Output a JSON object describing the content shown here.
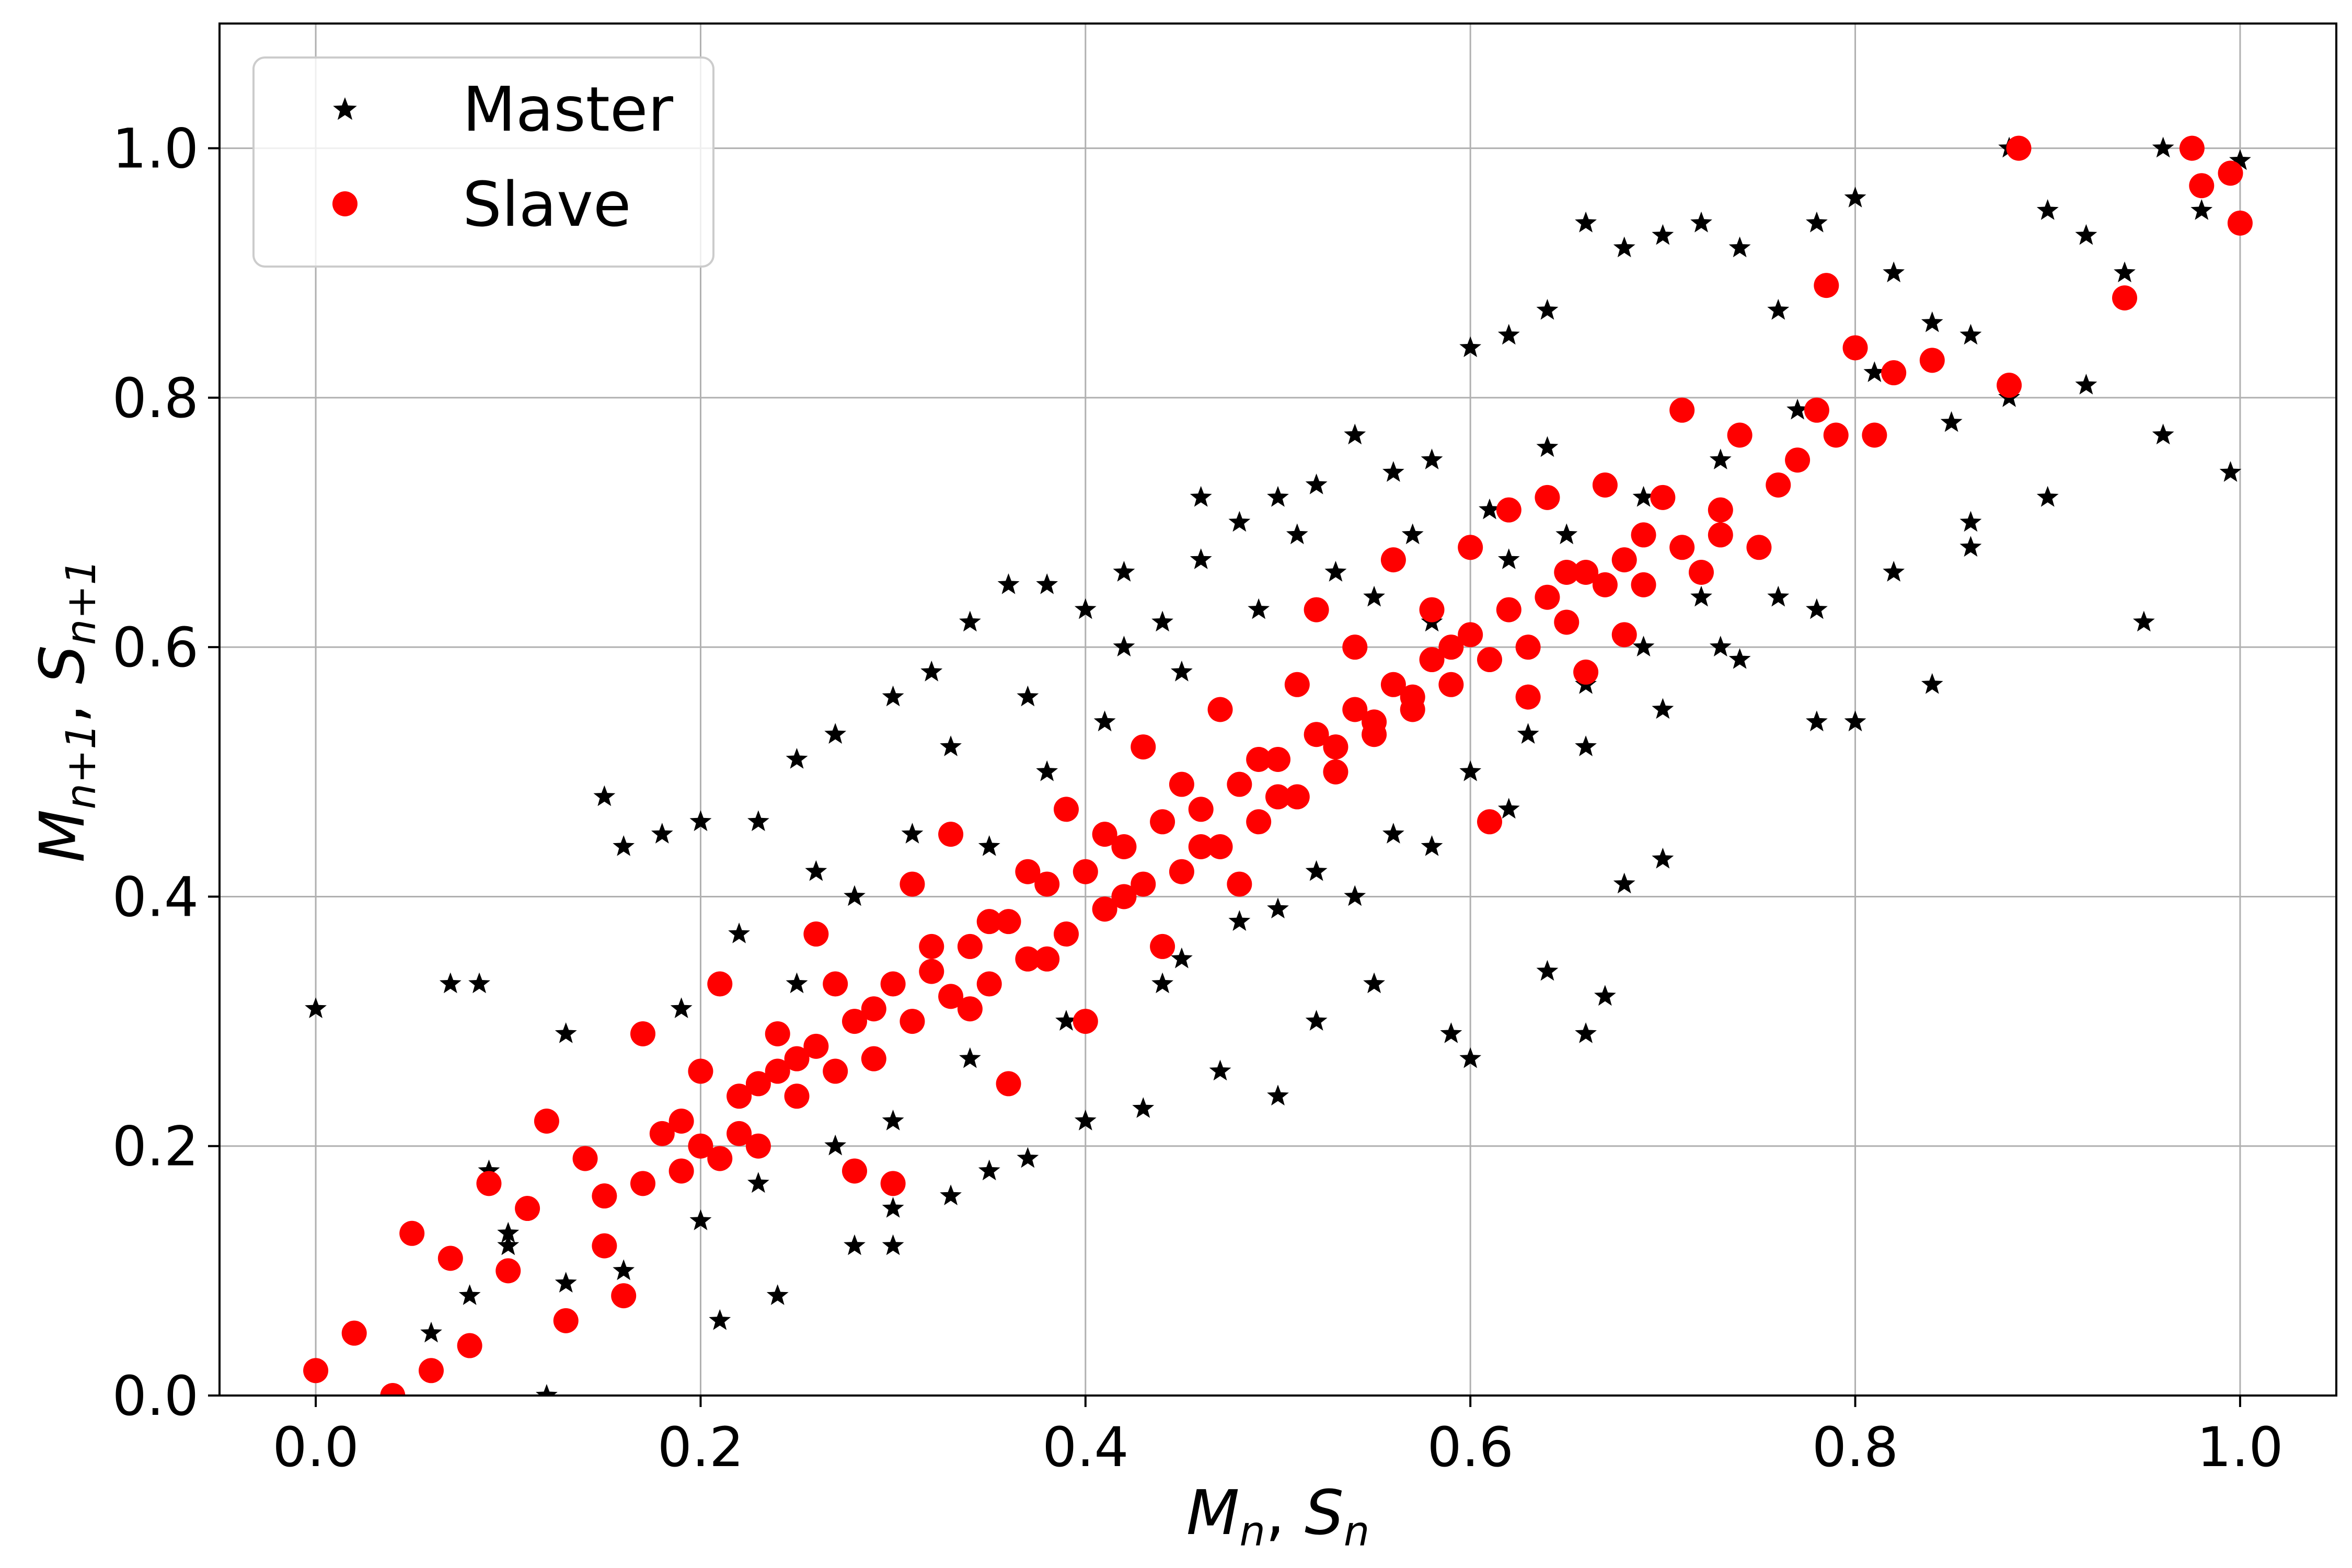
{
  "chart_data": {
    "type": "scatter",
    "title": "",
    "xlabel": {
      "main": "M",
      "sub": "n",
      "sep": ", ",
      "main2": "S",
      "sub2": "n"
    },
    "ylabel": {
      "main": "M",
      "sub": "n+1",
      "sep": ", ",
      "main2": "S",
      "sub2": "n+1"
    },
    "xlim": [
      -0.05,
      1.05
    ],
    "ylim": [
      0.0,
      1.1
    ],
    "xticks": [
      0.0,
      0.2,
      0.4,
      0.6,
      0.8,
      1.0
    ],
    "yticks": [
      0.0,
      0.2,
      0.4,
      0.6,
      0.8,
      1.0
    ],
    "xtick_labels": [
      "0.0",
      "0.2",
      "0.4",
      "0.6",
      "0.8",
      "1.0"
    ],
    "ytick_labels": [
      "0.0",
      "0.2",
      "0.4",
      "0.6",
      "0.8",
      "1.0"
    ],
    "grid": true,
    "legend_position": "top-left",
    "series": [
      {
        "name": "Master",
        "marker": "star",
        "color": "#000000",
        "points": [
          [
            0.0,
            0.31
          ],
          [
            0.07,
            0.33
          ],
          [
            0.085,
            0.33
          ],
          [
            0.09,
            0.18
          ],
          [
            0.1,
            0.12
          ],
          [
            0.12,
            0.0
          ],
          [
            0.13,
            0.29
          ],
          [
            0.15,
            0.48
          ],
          [
            0.16,
            0.44
          ],
          [
            0.18,
            0.45
          ],
          [
            0.2,
            0.46
          ],
          [
            0.21,
            0.06
          ],
          [
            0.23,
            0.46
          ],
          [
            0.24,
            0.08
          ],
          [
            0.25,
            0.51
          ],
          [
            0.28,
            0.12
          ],
          [
            0.3,
            0.12
          ],
          [
            0.27,
            0.53
          ],
          [
            0.3,
            0.56
          ],
          [
            0.32,
            0.58
          ],
          [
            0.34,
            0.62
          ],
          [
            0.36,
            0.65
          ],
          [
            0.38,
            0.65
          ],
          [
            0.4,
            0.63
          ],
          [
            0.42,
            0.66
          ],
          [
            0.44,
            0.62
          ],
          [
            0.46,
            0.72
          ],
          [
            0.48,
            0.7
          ],
          [
            0.5,
            0.72
          ],
          [
            0.52,
            0.73
          ],
          [
            0.54,
            0.77
          ],
          [
            0.56,
            0.74
          ],
          [
            0.58,
            0.75
          ],
          [
            0.6,
            0.84
          ],
          [
            0.62,
            0.85
          ],
          [
            0.64,
            0.87
          ],
          [
            0.66,
            0.94
          ],
          [
            0.68,
            0.92
          ],
          [
            0.7,
            0.93
          ],
          [
            0.72,
            0.94
          ],
          [
            0.74,
            0.92
          ],
          [
            0.76,
            0.87
          ],
          [
            0.78,
            0.94
          ],
          [
            0.8,
            0.96
          ],
          [
            0.82,
            0.9
          ],
          [
            0.84,
            0.86
          ],
          [
            0.86,
            0.85
          ],
          [
            0.88,
            1.0
          ],
          [
            0.9,
            0.95
          ],
          [
            0.92,
            0.93
          ],
          [
            0.94,
            0.9
          ],
          [
            0.96,
            1.0
          ],
          [
            0.98,
            0.95
          ],
          [
            1.0,
            0.99
          ],
          [
            0.995,
            0.74
          ],
          [
            0.95,
            0.62
          ],
          [
            0.9,
            0.72
          ],
          [
            0.86,
            0.68
          ],
          [
            0.84,
            0.57
          ],
          [
            0.8,
            0.54
          ],
          [
            0.78,
            0.54
          ],
          [
            0.76,
            0.64
          ],
          [
            0.73,
            0.6
          ],
          [
            0.7,
            0.43
          ],
          [
            0.68,
            0.41
          ],
          [
            0.67,
            0.32
          ],
          [
            0.66,
            0.29
          ],
          [
            0.64,
            0.34
          ],
          [
            0.6,
            0.27
          ],
          [
            0.59,
            0.29
          ],
          [
            0.55,
            0.33
          ],
          [
            0.52,
            0.3
          ],
          [
            0.5,
            0.24
          ],
          [
            0.47,
            0.26
          ],
          [
            0.43,
            0.23
          ],
          [
            0.4,
            0.22
          ],
          [
            0.37,
            0.19
          ],
          [
            0.35,
            0.18
          ],
          [
            0.33,
            0.16
          ],
          [
            0.3,
            0.15
          ],
          [
            0.44,
            0.33
          ],
          [
            0.48,
            0.38
          ],
          [
            0.52,
            0.42
          ],
          [
            0.56,
            0.45
          ],
          [
            0.6,
            0.5
          ],
          [
            0.63,
            0.53
          ],
          [
            0.66,
            0.57
          ],
          [
            0.69,
            0.6
          ],
          [
            0.72,
            0.64
          ],
          [
            0.35,
            0.44
          ],
          [
            0.38,
            0.5
          ],
          [
            0.41,
            0.54
          ],
          [
            0.45,
            0.58
          ],
          [
            0.49,
            0.63
          ],
          [
            0.53,
            0.66
          ],
          [
            0.57,
            0.69
          ],
          [
            0.61,
            0.71
          ],
          [
            0.64,
            0.76
          ],
          [
            0.25,
            0.33
          ],
          [
            0.28,
            0.4
          ],
          [
            0.31,
            0.45
          ],
          [
            0.22,
            0.37
          ],
          [
            0.26,
            0.42
          ],
          [
            0.19,
            0.31
          ],
          [
            0.33,
            0.52
          ],
          [
            0.37,
            0.56
          ],
          [
            0.42,
            0.6
          ],
          [
            0.46,
            0.67
          ],
          [
            0.51,
            0.69
          ],
          [
            0.55,
            0.64
          ],
          [
            0.58,
            0.62
          ],
          [
            0.62,
            0.67
          ],
          [
            0.65,
            0.69
          ],
          [
            0.69,
            0.72
          ],
          [
            0.73,
            0.75
          ],
          [
            0.77,
            0.79
          ],
          [
            0.81,
            0.82
          ],
          [
            0.85,
            0.78
          ],
          [
            0.88,
            0.8
          ],
          [
            0.92,
            0.81
          ],
          [
            0.96,
            0.77
          ],
          [
            0.3,
            0.22
          ],
          [
            0.34,
            0.27
          ],
          [
            0.39,
            0.3
          ],
          [
            0.45,
            0.35
          ],
          [
            0.5,
            0.39
          ],
          [
            0.54,
            0.4
          ],
          [
            0.58,
            0.44
          ],
          [
            0.62,
            0.47
          ],
          [
            0.66,
            0.52
          ],
          [
            0.7,
            0.55
          ],
          [
            0.74,
            0.59
          ],
          [
            0.78,
            0.63
          ],
          [
            0.82,
            0.66
          ],
          [
            0.86,
            0.7
          ],
          [
            0.27,
            0.2
          ],
          [
            0.23,
            0.17
          ],
          [
            0.2,
            0.14
          ],
          [
            0.16,
            0.1
          ],
          [
            0.13,
            0.09
          ],
          [
            0.1,
            0.13
          ],
          [
            0.08,
            0.08
          ],
          [
            0.06,
            0.05
          ]
        ]
      },
      {
        "name": "Slave",
        "marker": "circle",
        "color": "#ff0000",
        "points": [
          [
            0.0,
            0.02
          ],
          [
            0.02,
            0.05
          ],
          [
            0.04,
            0.0
          ],
          [
            0.05,
            0.13
          ],
          [
            0.06,
            0.02
          ],
          [
            0.07,
            0.11
          ],
          [
            0.08,
            0.04
          ],
          [
            0.09,
            0.17
          ],
          [
            0.1,
            0.1
          ],
          [
            0.11,
            0.15
          ],
          [
            0.12,
            0.22
          ],
          [
            0.13,
            0.06
          ],
          [
            0.14,
            0.19
          ],
          [
            0.15,
            0.12
          ],
          [
            0.16,
            0.08
          ],
          [
            0.17,
            0.29
          ],
          [
            0.18,
            0.21
          ],
          [
            0.19,
            0.18
          ],
          [
            0.2,
            0.26
          ],
          [
            0.21,
            0.33
          ],
          [
            0.22,
            0.21
          ],
          [
            0.23,
            0.25
          ],
          [
            0.24,
            0.29
          ],
          [
            0.25,
            0.27
          ],
          [
            0.26,
            0.37
          ],
          [
            0.27,
            0.33
          ],
          [
            0.28,
            0.18
          ],
          [
            0.29,
            0.31
          ],
          [
            0.3,
            0.17
          ],
          [
            0.31,
            0.41
          ],
          [
            0.32,
            0.36
          ],
          [
            0.33,
            0.45
          ],
          [
            0.34,
            0.31
          ],
          [
            0.35,
            0.38
          ],
          [
            0.36,
            0.25
          ],
          [
            0.37,
            0.42
          ],
          [
            0.38,
            0.35
          ],
          [
            0.39,
            0.47
          ],
          [
            0.4,
            0.3
          ],
          [
            0.41,
            0.45
          ],
          [
            0.42,
            0.4
          ],
          [
            0.43,
            0.52
          ],
          [
            0.44,
            0.36
          ],
          [
            0.45,
            0.49
          ],
          [
            0.46,
            0.44
          ],
          [
            0.47,
            0.55
          ],
          [
            0.48,
            0.41
          ],
          [
            0.49,
            0.51
          ],
          [
            0.5,
            0.48
          ],
          [
            0.51,
            0.57
          ],
          [
            0.52,
            0.63
          ],
          [
            0.53,
            0.5
          ],
          [
            0.54,
            0.6
          ],
          [
            0.55,
            0.54
          ],
          [
            0.56,
            0.67
          ],
          [
            0.57,
            0.55
          ],
          [
            0.58,
            0.63
          ],
          [
            0.59,
            0.6
          ],
          [
            0.6,
            0.68
          ],
          [
            0.61,
            0.46
          ],
          [
            0.62,
            0.71
          ],
          [
            0.63,
            0.56
          ],
          [
            0.64,
            0.72
          ],
          [
            0.65,
            0.66
          ],
          [
            0.66,
            0.58
          ],
          [
            0.67,
            0.73
          ],
          [
            0.68,
            0.61
          ],
          [
            0.69,
            0.69
          ],
          [
            0.7,
            0.72
          ],
          [
            0.71,
            0.79
          ],
          [
            0.72,
            0.66
          ],
          [
            0.73,
            0.71
          ],
          [
            0.74,
            0.77
          ],
          [
            0.75,
            0.68
          ],
          [
            0.76,
            0.73
          ],
          [
            0.77,
            0.75
          ],
          [
            0.78,
            0.79
          ],
          [
            0.79,
            0.77
          ],
          [
            0.8,
            0.84
          ],
          [
            0.81,
            0.77
          ],
          [
            0.82,
            0.82
          ],
          [
            0.84,
            0.83
          ],
          [
            0.785,
            0.89
          ],
          [
            0.88,
            0.81
          ],
          [
            0.885,
            1.0
          ],
          [
            0.94,
            0.88
          ],
          [
            0.975,
            1.0
          ],
          [
            0.98,
            0.97
          ],
          [
            0.995,
            0.98
          ],
          [
            1.0,
            0.94
          ],
          [
            0.2,
            0.2
          ],
          [
            0.22,
            0.24
          ],
          [
            0.24,
            0.26
          ],
          [
            0.26,
            0.28
          ],
          [
            0.28,
            0.3
          ],
          [
            0.3,
            0.33
          ],
          [
            0.32,
            0.34
          ],
          [
            0.34,
            0.36
          ],
          [
            0.36,
            0.38
          ],
          [
            0.38,
            0.41
          ],
          [
            0.4,
            0.42
          ],
          [
            0.42,
            0.44
          ],
          [
            0.44,
            0.46
          ],
          [
            0.46,
            0.47
          ],
          [
            0.48,
            0.49
          ],
          [
            0.5,
            0.51
          ],
          [
            0.52,
            0.53
          ],
          [
            0.54,
            0.55
          ],
          [
            0.56,
            0.57
          ],
          [
            0.58,
            0.59
          ],
          [
            0.6,
            0.61
          ],
          [
            0.62,
            0.63
          ],
          [
            0.64,
            0.64
          ],
          [
            0.66,
            0.66
          ],
          [
            0.68,
            0.67
          ],
          [
            0.15,
            0.16
          ],
          [
            0.17,
            0.17
          ],
          [
            0.19,
            0.22
          ],
          [
            0.21,
            0.19
          ],
          [
            0.23,
            0.2
          ],
          [
            0.25,
            0.24
          ],
          [
            0.27,
            0.26
          ],
          [
            0.29,
            0.27
          ],
          [
            0.31,
            0.3
          ],
          [
            0.33,
            0.32
          ],
          [
            0.35,
            0.33
          ],
          [
            0.37,
            0.35
          ],
          [
            0.39,
            0.37
          ],
          [
            0.41,
            0.39
          ],
          [
            0.43,
            0.41
          ],
          [
            0.45,
            0.42
          ],
          [
            0.47,
            0.44
          ],
          [
            0.49,
            0.46
          ],
          [
            0.51,
            0.48
          ],
          [
            0.53,
            0.52
          ],
          [
            0.55,
            0.53
          ],
          [
            0.57,
            0.56
          ],
          [
            0.59,
            0.57
          ],
          [
            0.61,
            0.59
          ],
          [
            0.63,
            0.6
          ],
          [
            0.65,
            0.62
          ],
          [
            0.67,
            0.65
          ],
          [
            0.69,
            0.65
          ],
          [
            0.71,
            0.68
          ],
          [
            0.73,
            0.69
          ]
        ]
      }
    ]
  }
}
